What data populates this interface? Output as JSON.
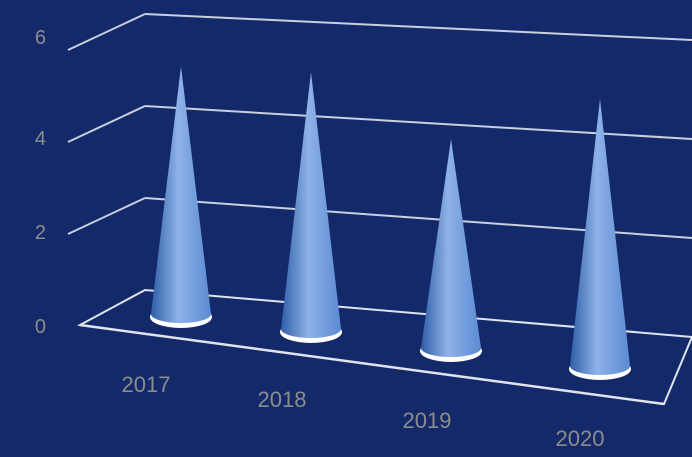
{
  "chart_data": {
    "type": "bar",
    "style": "3d-cone",
    "categories": [
      "2017",
      "2018",
      "2019",
      "2020"
    ],
    "values": [
      5.4,
      5.5,
      4.4,
      5.5
    ],
    "ylim": [
      0,
      6
    ],
    "y_ticks": [
      "0",
      "2",
      "4",
      "6"
    ],
    "grid": true,
    "legend": "none",
    "colors": {
      "background": "#13296a",
      "cone_light": "#8fb2e8",
      "cone_mid": "#5b8ad2",
      "cone_dark": "#2e5ea8",
      "gridline": "#c9cfde",
      "floor_edge": "#dfe3ec",
      "base_ring": "#ffffff",
      "label": "#8c8c8c"
    }
  }
}
